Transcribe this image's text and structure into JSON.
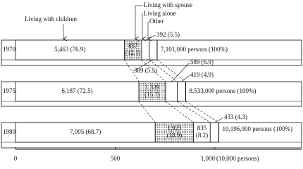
{
  "chart_data": {
    "type": "stacked-bar-horizontal",
    "categories": [
      "1970",
      "1975",
      "1980"
    ],
    "series": [
      {
        "name": "Living with children",
        "color": "#ffffff",
        "values": [
          546.3,
          618.7,
          700.5
        ],
        "value_labels": [
          "5,463 (76.9)",
          "6,187 (72.5)",
          "7,005 (68.7)"
        ]
      },
      {
        "name": "Living with spouse",
        "color": "#555555",
        "values": [
          85.7,
          133.9,
          192.3
        ],
        "value_labels": [
          "857 (12.1)",
          "1,339 (15.7)",
          "1,923 (18.9)"
        ]
      },
      {
        "name": "Living alone",
        "color": "#ffffff",
        "values": [
          39.2,
          58.9,
          83.5
        ],
        "value_labels": [
          "392 (5.5)",
          "589 (6.9)",
          "835 (8.2)"
        ]
      },
      {
        "name": "Other",
        "color": "#ffffff",
        "values": [
          38.9,
          41.9,
          43.3
        ],
        "value_labels": [
          "389 (5.5)",
          "419 (4.9)",
          "433 (4.3)"
        ]
      }
    ],
    "totals": [
      710.1,
      853.3,
      1019.6
    ],
    "total_labels": [
      "7,101,000 persons (100%)",
      "8,533,000 persons (100%)",
      "10,196,000 persons (100%)"
    ],
    "xlim": [
      0,
      1000
    ],
    "xticks": [
      0,
      500,
      {
        "value": 1000,
        "label": "1,000"
      }
    ],
    "xlabel": "(10,000 persons)"
  }
}
